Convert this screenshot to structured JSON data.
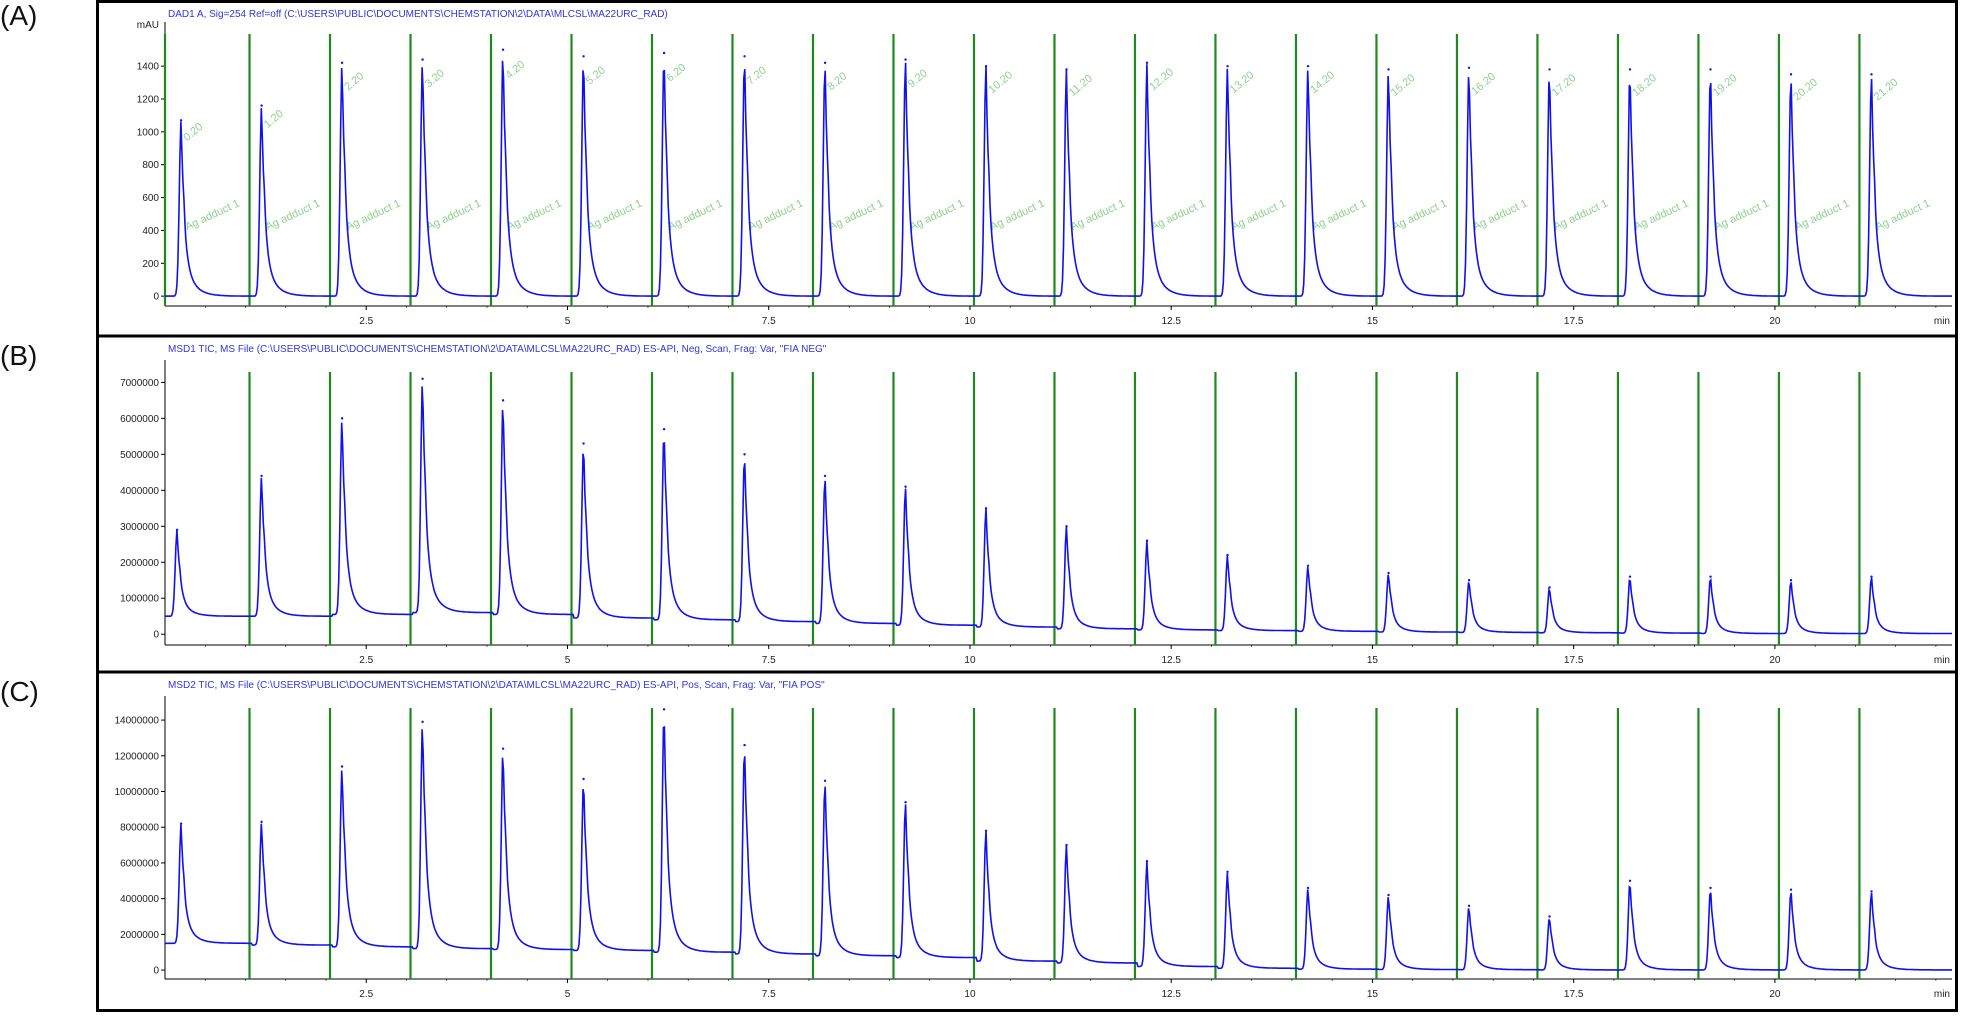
{
  "colors": {
    "trace": "#1111ee",
    "marker": "#1e8a1e",
    "header": "#3333dd",
    "axis": "#000000",
    "annotation": "#8fd08f"
  },
  "chart_data": [
    {
      "type": "line",
      "panel_label": "(A)",
      "header": "DAD1 A, Sig=254 Ref=off (C:\\USERS\\PUBLIC\\DOCUMENTS\\CHEMSTATION\\2\\DATA\\MLCSL\\MA22URC_RAD)",
      "ylabel": "mAU",
      "xlabel": "min",
      "xlim": [
        0.0,
        22.2
      ],
      "ylim": [
        -60,
        1620
      ],
      "y_ticks": [
        0,
        200,
        400,
        600,
        800,
        1000,
        1200,
        1400
      ],
      "y_tick_labels": [
        "0",
        "200",
        "400",
        "600",
        "800",
        "1000",
        "1200",
        "1400"
      ],
      "x_ticks": [
        2.5,
        5,
        7.5,
        10,
        12.5,
        15,
        17.5,
        20
      ],
      "x_tick_labels": [
        "2.5",
        "5",
        "7.5",
        "10",
        "12.5",
        "15",
        "17.5",
        "20"
      ],
      "injection_times": [
        0.0,
        1.05,
        2.05,
        3.05,
        4.05,
        5.05,
        6.05,
        7.05,
        8.05,
        9.05,
        10.05,
        11.05,
        12.05,
        13.05,
        14.05,
        15.05,
        16.05,
        17.05,
        18.05,
        19.05,
        20.05,
        21.05
      ],
      "peak_times": [
        0.2,
        1.2,
        2.2,
        3.2,
        4.2,
        5.2,
        6.2,
        7.2,
        8.2,
        9.2,
        10.2,
        11.2,
        12.2,
        13.2,
        14.2,
        15.2,
        16.2,
        17.2,
        18.2,
        19.2,
        20.2,
        21.2
      ],
      "peak_heights": [
        1070,
        1160,
        1420,
        1440,
        1500,
        1460,
        1480,
        1460,
        1420,
        1440,
        1400,
        1380,
        1420,
        1400,
        1400,
        1380,
        1390,
        1380,
        1380,
        1380,
        1350,
        1350
      ],
      "baseline": 0,
      "peak_annotations_upper": [
        "0.20",
        "1.20",
        "2.20",
        "3.20",
        "4.20",
        "5.20",
        "6.20",
        "7.20",
        "8.20",
        "9.20",
        "10.20",
        "11.20",
        "12.20",
        "13.20",
        "14.20",
        "15.20",
        "16.20",
        "17.20",
        "18.20",
        "19.20",
        "20.20",
        "21.20"
      ],
      "peak_annotations_lower": [
        "Ag adduct 1",
        "Ag adduct 1",
        "Ag adduct 1",
        "Ag adduct 1",
        "Ag adduct 1",
        "Ag adduct 1",
        "Ag adduct 1",
        "Ag adduct 1",
        "Ag adduct 1",
        "Ag adduct 1",
        "Ag adduct 1",
        "Ag adduct 1",
        "Ag adduct 1",
        "Ag adduct 1",
        "Ag adduct 1",
        "Ag adduct 1",
        "Ag adduct 1",
        "Ag adduct 1",
        "Ag adduct 1",
        "Ag adduct 1",
        "Ag adduct 1",
        "Ag adduct 1"
      ]
    },
    {
      "type": "line",
      "panel_label": "(B)",
      "header": "MSD1 TIC, MS File (C:\\USERS\\PUBLIC\\DOCUMENTS\\CHEMSTATION\\2\\DATA\\MLCSL\\MA22URC_RAD)   ES-API, Neg, Scan, Frag: Var, \"FIA NEG\"",
      "ylabel": "",
      "xlabel": "min",
      "xlim": [
        0.0,
        22.2
      ],
      "ylim": [
        -300000,
        7400000
      ],
      "y_ticks": [
        0,
        1000000,
        2000000,
        3000000,
        4000000,
        5000000,
        6000000,
        7000000
      ],
      "y_tick_labels": [
        "0",
        "1000000",
        "2000000",
        "3000000",
        "4000000",
        "5000000",
        "6000000",
        "7000000"
      ],
      "x_ticks": [
        2.5,
        5,
        7.5,
        10,
        12.5,
        15,
        17.5,
        20
      ],
      "x_tick_labels": [
        "2.5",
        "5",
        "7.5",
        "10",
        "12.5",
        "15",
        "17.5",
        "20"
      ],
      "injection_times": [
        1.05,
        2.05,
        3.05,
        4.05,
        5.05,
        6.05,
        7.05,
        8.05,
        9.05,
        10.05,
        11.05,
        12.05,
        13.05,
        14.05,
        15.05,
        16.05,
        17.05,
        18.05,
        19.05,
        20.05,
        21.05
      ],
      "peak_times": [
        0.15,
        1.2,
        2.2,
        3.2,
        4.2,
        5.2,
        6.2,
        7.2,
        8.2,
        9.2,
        10.2,
        11.2,
        12.2,
        13.2,
        14.2,
        15.2,
        16.2,
        17.2,
        18.2,
        19.2,
        20.2,
        21.2
      ],
      "peak_heights": [
        2900000,
        4400000,
        6000000,
        7100000,
        6500000,
        5300000,
        5700000,
        5000000,
        4400000,
        4100000,
        3500000,
        3000000,
        2600000,
        2200000,
        1900000,
        1700000,
        1500000,
        1300000,
        1600000,
        1600000,
        1500000,
        1600000
      ],
      "baselines": [
        500000,
        500000,
        550000,
        600000,
        550000,
        450000,
        400000,
        350000,
        300000,
        250000,
        200000,
        150000,
        120000,
        100000,
        80000,
        60000,
        50000,
        40000,
        30000,
        20000,
        20000,
        20000
      ]
    },
    {
      "type": "line",
      "panel_label": "(C)",
      "header": "MSD2 TIC, MS File (C:\\USERS\\PUBLIC\\DOCUMENTS\\CHEMSTATION\\2\\DATA\\MLCSL\\MA22URC_RAD)   ES-API, Pos, Scan, Frag: Var, \"FIA POS\"",
      "ylabel": "",
      "xlabel": "min",
      "xlim": [
        0.0,
        22.2
      ],
      "ylim": [
        -500000,
        14900000
      ],
      "y_ticks": [
        0,
        2000000,
        4000000,
        6000000,
        8000000,
        10000000,
        12000000,
        14000000
      ],
      "y_tick_labels": [
        "0",
        "2000000",
        "4000000",
        "6000000",
        "8000000",
        "10000000",
        "12000000",
        "14000000"
      ],
      "x_ticks": [
        2.5,
        5,
        7.5,
        10,
        12.5,
        15,
        17.5,
        20
      ],
      "x_tick_labels": [
        "2.5",
        "5",
        "7.5",
        "10",
        "12.5",
        "15",
        "17.5",
        "20"
      ],
      "injection_times": [
        1.05,
        2.05,
        3.05,
        4.05,
        5.05,
        6.05,
        7.05,
        8.05,
        9.05,
        10.05,
        11.05,
        12.05,
        13.05,
        14.05,
        15.05,
        16.05,
        17.05,
        18.05,
        19.05,
        20.05,
        21.05
      ],
      "peak_times": [
        0.2,
        1.2,
        2.2,
        3.2,
        4.2,
        5.2,
        6.2,
        7.2,
        8.2,
        9.2,
        10.2,
        11.2,
        12.2,
        13.2,
        14.2,
        15.2,
        16.2,
        17.2,
        18.2,
        19.2,
        20.2,
        21.2
      ],
      "peak_heights": [
        8200000,
        8300000,
        11400000,
        13900000,
        12400000,
        10700000,
        14600000,
        12600000,
        10600000,
        9400000,
        7800000,
        7000000,
        6100000,
        5500000,
        4600000,
        4200000,
        3600000,
        3000000,
        5000000,
        4600000,
        4500000,
        4400000
      ],
      "baselines": [
        1500000,
        1400000,
        1300000,
        1200000,
        1150000,
        1100000,
        1000000,
        900000,
        800000,
        700000,
        500000,
        400000,
        200000,
        100000,
        50000,
        30000,
        20000,
        10000,
        10000,
        10000,
        10000,
        10000
      ]
    }
  ]
}
